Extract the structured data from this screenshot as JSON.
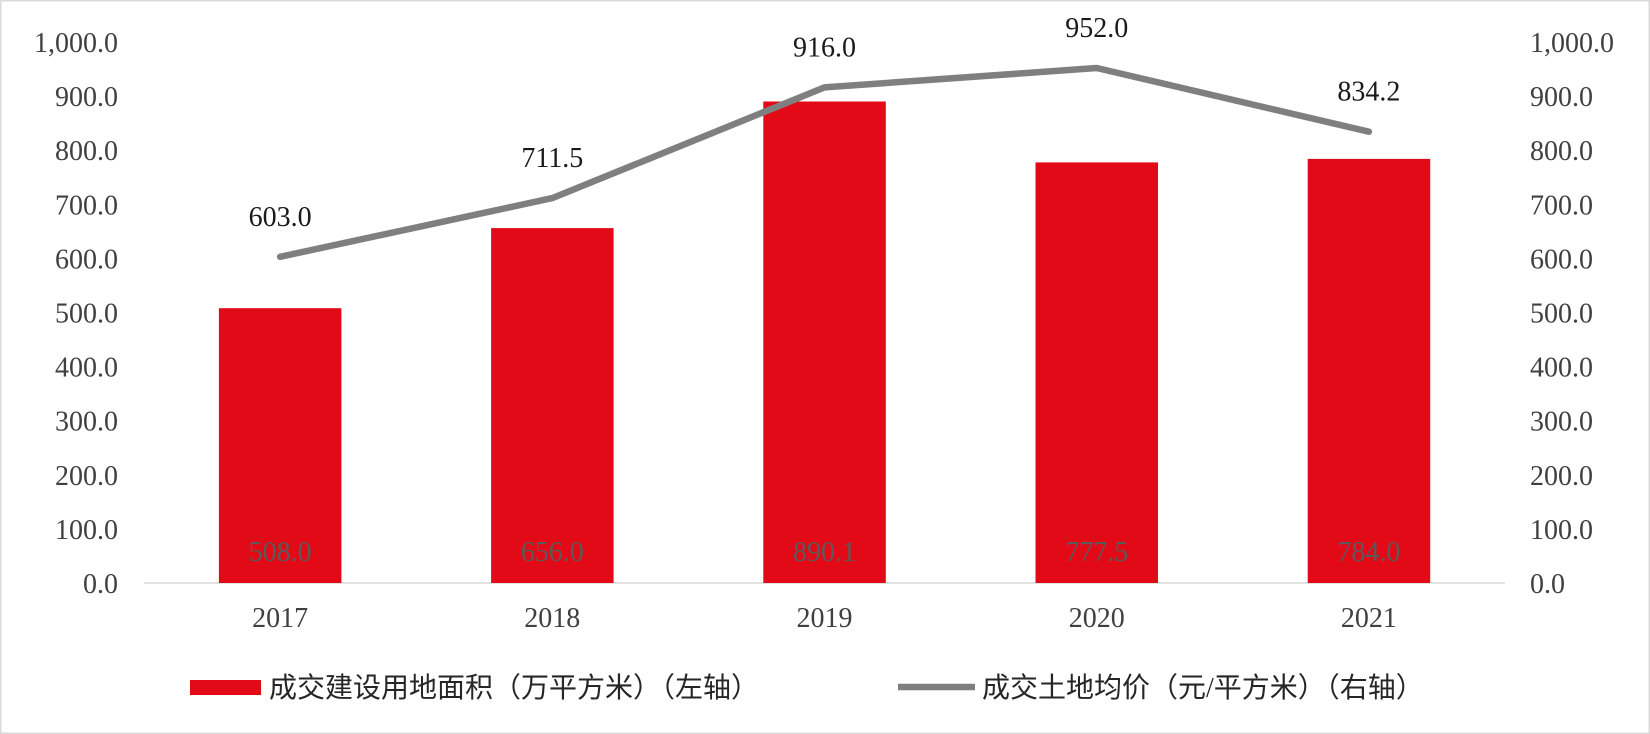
{
  "chart_data": {
    "type": "bar",
    "categories": [
      "2017",
      "2018",
      "2019",
      "2020",
      "2021"
    ],
    "series": [
      {
        "name": "成交建设用地面积（万平方米）（左轴）",
        "type": "bar",
        "axis": "left",
        "color": "#e30a17",
        "values": [
          508.0,
          656.0,
          890.1,
          777.5,
          784.0
        ],
        "data_labels": [
          "508.0",
          "656.0",
          "890.1",
          "777.5",
          "784.0"
        ]
      },
      {
        "name": "成交土地均价（元/平方米）（右轴）",
        "type": "line",
        "axis": "right",
        "color": "#7f7f7f",
        "values": [
          603.0,
          711.5,
          916.0,
          952.0,
          834.2
        ],
        "data_labels": [
          "603.0",
          "711.5",
          "916.0",
          "952.0",
          "834.2"
        ]
      }
    ],
    "y_left": {
      "ylim": [
        0,
        1000
      ],
      "ticks": [
        0,
        100,
        200,
        300,
        400,
        500,
        600,
        700,
        800,
        900,
        1000
      ],
      "tick_labels": [
        "0.0",
        "100.0",
        "200.0",
        "300.0",
        "400.0",
        "500.0",
        "600.0",
        "700.0",
        "800.0",
        "900.0",
        "1,000.0"
      ]
    },
    "y_right": {
      "ylim": [
        0,
        1000
      ],
      "ticks": [
        0,
        100,
        200,
        300,
        400,
        500,
        600,
        700,
        800,
        900,
        1000
      ],
      "tick_labels": [
        "0.0",
        "100.0",
        "200.0",
        "300.0",
        "400.0",
        "500.0",
        "600.0",
        "700.0",
        "800.0",
        "900.0",
        "1,000.0"
      ]
    },
    "legend": "bottom",
    "grid": false
  }
}
